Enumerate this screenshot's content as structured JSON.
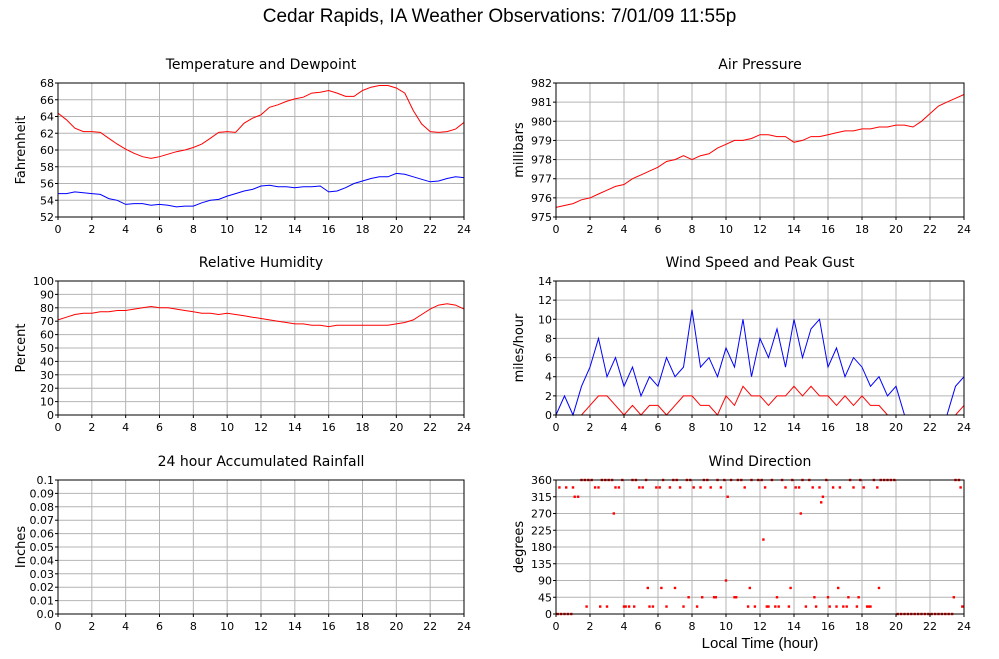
{
  "title": "Cedar Rapids, IA Weather Observations: 7/01/09 11:55p",
  "x_axis_caption": "Local Time (hour)",
  "colors": {
    "red": "#ff0000",
    "blue": "#0000ff",
    "grid": "#b4b4b4",
    "zero_line": "#c0c0c0"
  },
  "chart_data": [
    {
      "id": "temp",
      "type": "line",
      "title": "Temperature and Dewpoint",
      "ylabel": "Fahrenheit",
      "xlim": [
        0,
        24
      ],
      "ylim": [
        52,
        68
      ],
      "xticks": [
        0,
        2,
        4,
        6,
        8,
        10,
        12,
        14,
        16,
        18,
        20,
        22,
        24
      ],
      "yticks": [
        52,
        54,
        56,
        58,
        60,
        62,
        64,
        66,
        68
      ],
      "grid": true,
      "series": [
        {
          "color": "#ff0000",
          "x": [
            0,
            0.5,
            1,
            1.5,
            2,
            2.5,
            3,
            3.5,
            4,
            4.5,
            5,
            5.5,
            6,
            6.5,
            7,
            7.5,
            8,
            8.5,
            9,
            9.5,
            10,
            10.5,
            11,
            11.5,
            12,
            12.5,
            13,
            13.5,
            14,
            14.5,
            15,
            15.5,
            16,
            16.5,
            17,
            17.5,
            18,
            18.5,
            19,
            19.5,
            20,
            20.5,
            21,
            21.5,
            22,
            22.5,
            23,
            23.5,
            24
          ],
          "y": [
            64.4,
            63.6,
            62.6,
            62.2,
            62.2,
            62.1,
            61.4,
            60.7,
            60.1,
            59.6,
            59.2,
            59.0,
            59.2,
            59.5,
            59.8,
            60.0,
            60.3,
            60.7,
            61.4,
            62.1,
            62.2,
            62.1,
            63.2,
            63.8,
            64.2,
            65.1,
            65.4,
            65.8,
            66.1,
            66.3,
            66.8,
            66.9,
            67.1,
            66.8,
            66.4,
            66.4,
            67.1,
            67.5,
            67.7,
            67.7,
            67.4,
            66.8,
            64.7,
            63.1,
            62.2,
            62.1,
            62.2,
            62.5,
            63.3
          ]
        },
        {
          "color": "#0000ff",
          "x": [
            0,
            0.5,
            1,
            1.5,
            2,
            2.5,
            3,
            3.5,
            4,
            4.5,
            5,
            5.5,
            6,
            6.5,
            7,
            7.5,
            8,
            8.5,
            9,
            9.5,
            10,
            10.5,
            11,
            11.5,
            12,
            12.5,
            13,
            13.5,
            14,
            14.5,
            15,
            15.5,
            16,
            16.5,
            17,
            17.5,
            18,
            18.5,
            19,
            19.5,
            20,
            20.5,
            21,
            21.5,
            22,
            22.5,
            23,
            23.5,
            24
          ],
          "y": [
            54.8,
            54.8,
            55.0,
            54.9,
            54.8,
            54.7,
            54.2,
            54.0,
            53.5,
            53.6,
            53.6,
            53.4,
            53.5,
            53.4,
            53.2,
            53.3,
            53.3,
            53.7,
            54.0,
            54.1,
            54.5,
            54.8,
            55.1,
            55.3,
            55.7,
            55.8,
            55.6,
            55.6,
            55.5,
            55.6,
            55.6,
            55.7,
            55.0,
            55.1,
            55.5,
            56.0,
            56.3,
            56.6,
            56.8,
            56.8,
            57.2,
            57.1,
            56.8,
            56.5,
            56.2,
            56.3,
            56.6,
            56.8,
            56.7
          ]
        }
      ]
    },
    {
      "id": "pressure",
      "type": "line",
      "title": "Air Pressure",
      "ylabel": "millibars",
      "xlim": [
        0,
        24
      ],
      "ylim": [
        975,
        982
      ],
      "xticks": [
        0,
        2,
        4,
        6,
        8,
        10,
        12,
        14,
        16,
        18,
        20,
        22,
        24
      ],
      "yticks": [
        975,
        976,
        977,
        978,
        979,
        980,
        981,
        982
      ],
      "grid": true,
      "series": [
        {
          "color": "#ff0000",
          "x": [
            0,
            0.5,
            1,
            1.5,
            2,
            2.5,
            3,
            3.5,
            4,
            4.5,
            5,
            5.5,
            6,
            6.5,
            7,
            7.5,
            8,
            8.5,
            9,
            9.5,
            10,
            10.5,
            11,
            11.5,
            12,
            12.5,
            13,
            13.5,
            14,
            14.5,
            15,
            15.5,
            16,
            16.5,
            17,
            17.5,
            18,
            18.5,
            19,
            19.5,
            20,
            20.5,
            21,
            21.5,
            22,
            22.5,
            23,
            23.5,
            24
          ],
          "y": [
            975.5,
            975.6,
            975.7,
            975.9,
            976.0,
            976.2,
            976.4,
            976.6,
            976.7,
            977.0,
            977.2,
            977.4,
            977.6,
            977.9,
            978.0,
            978.2,
            978.0,
            978.2,
            978.3,
            978.6,
            978.8,
            979.0,
            979.0,
            979.1,
            979.3,
            979.3,
            979.2,
            979.2,
            978.9,
            979.0,
            979.2,
            979.2,
            979.3,
            979.4,
            979.5,
            979.5,
            979.6,
            979.6,
            979.7,
            979.7,
            979.8,
            979.8,
            979.7,
            980.0,
            980.4,
            980.8,
            981.0,
            981.2,
            981.4
          ]
        }
      ]
    },
    {
      "id": "rh",
      "type": "line",
      "title": "Relative Humidity",
      "ylabel": "Percent",
      "xlim": [
        0,
        24
      ],
      "ylim": [
        0,
        100
      ],
      "xticks": [
        0,
        2,
        4,
        6,
        8,
        10,
        12,
        14,
        16,
        18,
        20,
        22,
        24
      ],
      "yticks": [
        0,
        10,
        20,
        30,
        40,
        50,
        60,
        70,
        80,
        90,
        100
      ],
      "grid": true,
      "series": [
        {
          "color": "#ff0000",
          "x": [
            0,
            0.5,
            1,
            1.5,
            2,
            2.5,
            3,
            3.5,
            4,
            4.5,
            5,
            5.5,
            6,
            6.5,
            7,
            7.5,
            8,
            8.5,
            9,
            9.5,
            10,
            10.5,
            11,
            11.5,
            12,
            12.5,
            13,
            13.5,
            14,
            14.5,
            15,
            15.5,
            16,
            16.5,
            17,
            17.5,
            18,
            18.5,
            19,
            19.5,
            20,
            20.5,
            21,
            21.5,
            22,
            22.5,
            23,
            23.5,
            24
          ],
          "y": [
            71,
            73,
            75,
            76,
            76,
            77,
            77,
            78,
            78,
            79,
            80,
            81,
            80,
            80,
            79,
            78,
            77,
            76,
            76,
            75,
            76,
            75,
            74,
            73,
            72,
            71,
            70,
            69,
            68,
            68,
            67,
            67,
            66,
            67,
            67,
            67,
            67,
            67,
            67,
            67,
            68,
            69,
            71,
            75,
            79,
            82,
            83,
            82,
            79
          ]
        }
      ]
    },
    {
      "id": "wind",
      "type": "line",
      "title": "Wind Speed and Peak Gust",
      "ylabel": "miles/hour",
      "xlim": [
        0,
        24
      ],
      "ylim": [
        0,
        14
      ],
      "xticks": [
        0,
        2,
        4,
        6,
        8,
        10,
        12,
        14,
        16,
        18,
        20,
        22,
        24
      ],
      "yticks": [
        0,
        2,
        4,
        6,
        8,
        10,
        12,
        14
      ],
      "grid": true,
      "series": [
        {
          "color": "#0000ff",
          "x": [
            0,
            0.5,
            1,
            1.5,
            2,
            2.5,
            3,
            3.5,
            4,
            4.5,
            5,
            5.5,
            6,
            6.5,
            7,
            7.5,
            8,
            8.5,
            9,
            9.5,
            10,
            10.5,
            11,
            11.5,
            12,
            12.5,
            13,
            13.5,
            14,
            14.5,
            15,
            15.5,
            16,
            16.5,
            17,
            17.5,
            18,
            18.5,
            19,
            19.5,
            20,
            20.5,
            21,
            21.5,
            22,
            22.5,
            23,
            23.5,
            24
          ],
          "y": [
            0,
            2,
            0,
            3,
            5,
            8,
            4,
            6,
            3,
            5,
            2,
            4,
            3,
            6,
            4,
            5,
            11,
            5,
            6,
            4,
            7,
            5,
            10,
            4,
            8,
            6,
            9,
            5,
            10,
            6,
            9,
            10,
            5,
            7,
            4,
            6,
            5,
            3,
            4,
            2,
            3,
            0,
            0,
            0,
            0,
            0,
            0,
            3,
            4
          ]
        },
        {
          "color": "#ff0000",
          "x": [
            0,
            0.5,
            1,
            1.5,
            2,
            2.5,
            3,
            3.5,
            4,
            4.5,
            5,
            5.5,
            6,
            6.5,
            7,
            7.5,
            8,
            8.5,
            9,
            9.5,
            10,
            10.5,
            11,
            11.5,
            12,
            12.5,
            13,
            13.5,
            14,
            14.5,
            15,
            15.5,
            16,
            16.5,
            17,
            17.5,
            18,
            18.5,
            19,
            19.5,
            20,
            20.5,
            21,
            21.5,
            22,
            22.5,
            23,
            23.5,
            24
          ],
          "y": [
            0,
            0,
            0,
            0,
            1,
            2,
            2,
            1,
            0,
            1,
            0,
            1,
            1,
            0,
            1,
            2,
            2,
            1,
            1,
            0,
            2,
            1,
            3,
            2,
            2,
            1,
            2,
            2,
            3,
            2,
            3,
            2,
            2,
            1,
            2,
            1,
            2,
            1,
            1,
            0,
            0,
            0,
            0,
            0,
            0,
            0,
            0,
            0,
            1
          ]
        }
      ]
    },
    {
      "id": "rain",
      "type": "line",
      "title": "24 hour Accumulated Rainfall",
      "ylabel": "Inches",
      "xlim": [
        0,
        24
      ],
      "ylim": [
        0,
        0.1
      ],
      "xticks": [
        0,
        2,
        4,
        6,
        8,
        10,
        12,
        14,
        16,
        18,
        20,
        22,
        24
      ],
      "yticks": [
        0.0,
        0.01,
        0.02,
        0.03,
        0.04,
        0.05,
        0.06,
        0.07,
        0.08,
        0.09,
        0.1
      ],
      "ytick_labels": [
        "0.0",
        "0.01",
        "0.02",
        "0.03",
        "0.04",
        "0.05",
        "0.06",
        "0.07",
        "0.08",
        "0.09",
        "0.1"
      ],
      "grid": true,
      "series": [
        {
          "color": "#ff0000",
          "x": [
            0,
            24
          ],
          "y": [
            0,
            0
          ]
        }
      ]
    },
    {
      "id": "direction",
      "type": "scatter",
      "title": "Wind Direction",
      "ylabel": "degrees",
      "xlim": [
        0,
        24
      ],
      "ylim": [
        0,
        360
      ],
      "xticks": [
        0,
        2,
        4,
        6,
        8,
        10,
        12,
        14,
        16,
        18,
        20,
        22,
        24
      ],
      "yticks": [
        0,
        45,
        90,
        135,
        180,
        225,
        270,
        315,
        360
      ],
      "grid": true,
      "series": [
        {
          "color": "#ff0000",
          "x": [
            0.1,
            0.3,
            0.5,
            0.7,
            0.9,
            1.1,
            1.3,
            1.5,
            1.7,
            1.9,
            2.1,
            2.3,
            2.5,
            2.7,
            2.9,
            3.1,
            3.3,
            3.5,
            3.7,
            3.9,
            4.1,
            4.3,
            4.5,
            4.7,
            4.9,
            5.1,
            5.3,
            5.5,
            5.7,
            5.9,
            6.1,
            6.3,
            6.5,
            6.7,
            6.9,
            7.1,
            7.3,
            7.5,
            7.7,
            7.9,
            8.1,
            8.3,
            8.5,
            8.7,
            8.9,
            9.1,
            9.3,
            9.5,
            9.7,
            9.9,
            10.1,
            10.3,
            10.5,
            10.7,
            10.9,
            11.1,
            11.3,
            11.5,
            11.7,
            11.9,
            12.1,
            12.3,
            12.5,
            12.7,
            12.9,
            13.1,
            13.3,
            13.5,
            13.7,
            13.9,
            14.1,
            14.3,
            14.5,
            14.7,
            14.9,
            15.1,
            15.3,
            15.5,
            15.7,
            15.9,
            16.1,
            16.3,
            16.5,
            16.7,
            16.9,
            17.1,
            17.3,
            17.5,
            17.7,
            17.9,
            18.1,
            18.3,
            18.5,
            18.7,
            18.9,
            19.1,
            19.3,
            19.5,
            19.7,
            19.9,
            20.1,
            20.3,
            20.5,
            20.7,
            20.9,
            21.1,
            21.3,
            21.5,
            21.7,
            21.9,
            22.1,
            22.3,
            22.5,
            22.7,
            22.9,
            23.1,
            23.3,
            23.5,
            23.7,
            23.9,
            0.2,
            0.6,
            1.0,
            1.8,
            2.6,
            3.0,
            3.4,
            4.0,
            4.6,
            5.4,
            6.2,
            7.0,
            7.8,
            8.6,
            9.4,
            10.0,
            10.6,
            11.4,
            12.2,
            12.4,
            13.0,
            13.8,
            14.4,
            15.2,
            15.6,
            16.0,
            16.6,
            17.2,
            17.8,
            18.4,
            19.0,
            23.4,
            23.8
          ],
          "y": [
            0,
            0,
            0,
            0,
            0,
            315,
            315,
            360,
            360,
            360,
            360,
            340,
            340,
            360,
            360,
            360,
            360,
            340,
            340,
            360,
            20,
            20,
            360,
            360,
            340,
            340,
            360,
            20,
            20,
            340,
            340,
            360,
            20,
            340,
            360,
            360,
            340,
            20,
            360,
            360,
            340,
            20,
            340,
            360,
            360,
            340,
            45,
            360,
            340,
            360,
            315,
            360,
            45,
            360,
            360,
            340,
            20,
            360,
            20,
            360,
            360,
            340,
            20,
            360,
            20,
            20,
            360,
            340,
            20,
            360,
            340,
            340,
            360,
            20,
            360,
            340,
            20,
            340,
            315,
            360,
            20,
            340,
            20,
            340,
            20,
            20,
            360,
            340,
            20,
            360,
            340,
            20,
            20,
            360,
            340,
            360,
            360,
            360,
            360,
            360,
            0,
            0,
            0,
            0,
            0,
            0,
            0,
            0,
            0,
            0,
            0,
            0,
            0,
            0,
            0,
            0,
            0,
            360,
            360,
            20,
            340,
            340,
            340,
            20,
            20,
            20,
            270,
            20,
            20,
            70,
            70,
            70,
            45,
            45,
            45,
            90,
            45,
            70,
            200,
            20,
            45,
            70,
            270,
            45,
            300,
            45,
            70,
            45,
            45,
            20,
            70,
            45,
            340
          ]
        }
      ]
    }
  ]
}
